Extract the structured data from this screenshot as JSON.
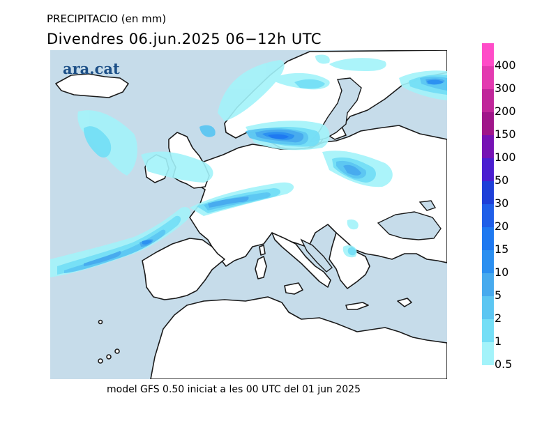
{
  "header": {
    "variable_title": "PRECIPITACIO (en mm)",
    "forecast_title": "Divendres  06.jun.2025 06−12h UTC"
  },
  "logo_text": "ara.cat",
  "footer": {
    "model_caption": "model GFS 0.50 iniciat a les 00 UTC del 01 jun 2025"
  },
  "legend": {
    "labels": [
      "400",
      "300",
      "200",
      "150",
      "100",
      "50",
      "30",
      "20",
      "15",
      "10",
      "5",
      "2",
      "1",
      "0.5"
    ],
    "colors": [
      "#ff4cc8",
      "#e33ab0",
      "#c0269a",
      "#a0168a",
      "#7612b4",
      "#4a1ed0",
      "#1e3fd8",
      "#1f5ee8",
      "#1e78f0",
      "#2b8ff0",
      "#47aaee",
      "#5cc6f2",
      "#74def6",
      "#a3f3fa"
    ]
  },
  "colors": {
    "sea": "#c6dcea",
    "land": "#ffffff",
    "coast": "#1a1a1a",
    "brand": "#1c4f87"
  }
}
